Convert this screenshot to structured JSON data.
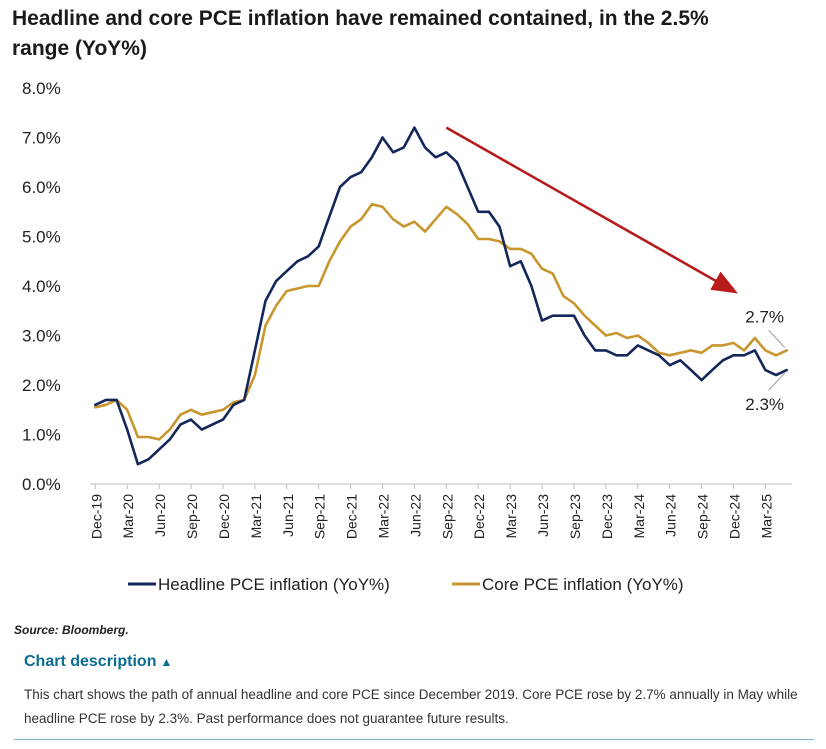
{
  "title": "Headline and core PCE inflation have remained contained, in the 2.5% range (YoY%)",
  "source": "Source: Bloomberg.",
  "description": {
    "toggle_label": "Chart description",
    "text": "This chart shows the path of annual headline and core PCE since December 2019. Core PCE rose by 2.7% annually in May while headline PCE rose by 2.3%. Past performance does not guarantee future results."
  },
  "chart_data": {
    "type": "line",
    "title": "Headline and core PCE inflation have remained contained, in the 2.5% range (YoY%)",
    "x_tick_labels": [
      "Dec-19",
      "Mar-20",
      "Jun-20",
      "Sep-20",
      "Dec-20",
      "Mar-21",
      "Jun-21",
      "Sep-21",
      "Dec-21",
      "Mar-22",
      "Jun-22",
      "Sep-22",
      "Dec-22",
      "Mar-23",
      "Jun-23",
      "Sep-23",
      "Dec-23",
      "Mar-24",
      "Jun-24",
      "Sep-24",
      "Dec-24",
      "Mar-25"
    ],
    "x": [
      "Dec-19",
      "Jan-20",
      "Feb-20",
      "Mar-20",
      "Apr-20",
      "May-20",
      "Jun-20",
      "Jul-20",
      "Aug-20",
      "Sep-20",
      "Oct-20",
      "Nov-20",
      "Dec-20",
      "Jan-21",
      "Feb-21",
      "Mar-21",
      "Apr-21",
      "May-21",
      "Jun-21",
      "Jul-21",
      "Aug-21",
      "Sep-21",
      "Oct-21",
      "Nov-21",
      "Dec-21",
      "Jan-22",
      "Feb-22",
      "Mar-22",
      "Apr-22",
      "May-22",
      "Jun-22",
      "Jul-22",
      "Aug-22",
      "Sep-22",
      "Oct-22",
      "Nov-22",
      "Dec-22",
      "Jan-23",
      "Feb-23",
      "Mar-23",
      "Apr-23",
      "May-23",
      "Jun-23",
      "Jul-23",
      "Aug-23",
      "Sep-23",
      "Oct-23",
      "Nov-23",
      "Dec-23",
      "Jan-24",
      "Feb-24",
      "Mar-24",
      "Apr-24",
      "May-24",
      "Jun-24",
      "Jul-24",
      "Aug-24",
      "Sep-24",
      "Oct-24",
      "Nov-24",
      "Dec-24",
      "Jan-25",
      "Feb-25",
      "Mar-25",
      "Apr-25",
      "May-25"
    ],
    "series": [
      {
        "name": "Headline PCE inflation (YoY%)",
        "color": "#14275a",
        "values": [
          1.6,
          1.7,
          1.7,
          1.1,
          0.4,
          0.5,
          0.7,
          0.9,
          1.2,
          1.3,
          1.1,
          1.2,
          1.3,
          1.6,
          1.7,
          2.7,
          3.7,
          4.1,
          4.3,
          4.5,
          4.6,
          4.8,
          5.4,
          6.0,
          6.2,
          6.3,
          6.6,
          7.0,
          6.7,
          6.8,
          7.2,
          6.8,
          6.6,
          6.7,
          6.5,
          6.0,
          5.5,
          5.5,
          5.2,
          4.4,
          4.5,
          4.0,
          3.3,
          3.4,
          3.4,
          3.4,
          3.0,
          2.7,
          2.7,
          2.6,
          2.6,
          2.8,
          2.7,
          2.6,
          2.4,
          2.5,
          2.3,
          2.1,
          2.3,
          2.5,
          2.6,
          2.6,
          2.7,
          2.3,
          2.2,
          2.3
        ]
      },
      {
        "name": "Core PCE inflation (YoY%)",
        "color": "#c8962e",
        "values": [
          1.55,
          1.6,
          1.7,
          1.5,
          0.95,
          0.95,
          0.9,
          1.1,
          1.4,
          1.5,
          1.4,
          1.45,
          1.5,
          1.65,
          1.7,
          2.2,
          3.2,
          3.6,
          3.9,
          3.95,
          4.0,
          4.0,
          4.5,
          4.9,
          5.2,
          5.35,
          5.65,
          5.6,
          5.35,
          5.2,
          5.3,
          5.1,
          5.35,
          5.6,
          5.45,
          5.25,
          4.95,
          4.95,
          4.9,
          4.75,
          4.75,
          4.65,
          4.35,
          4.25,
          3.8,
          3.65,
          3.4,
          3.2,
          3.0,
          3.05,
          2.95,
          3.0,
          2.85,
          2.65,
          2.6,
          2.65,
          2.7,
          2.65,
          2.8,
          2.8,
          2.85,
          2.7,
          2.95,
          2.7,
          2.6,
          2.7
        ]
      }
    ],
    "ylim": [
      0,
      8
    ],
    "y_tick_labels": [
      "0.0%",
      "1.0%",
      "2.0%",
      "3.0%",
      "4.0%",
      "5.0%",
      "6.0%",
      "7.0%",
      "8.0%"
    ],
    "grid": false,
    "legend_position": "bottom",
    "annotations": {
      "core_end_label": "2.7%",
      "headline_end_label": "2.3%",
      "trend_arrow": {
        "color": "#b71c1c",
        "from": [
          "Sep-22",
          7.2
        ],
        "to": [
          "Dec-24",
          3.9
        ]
      }
    }
  }
}
